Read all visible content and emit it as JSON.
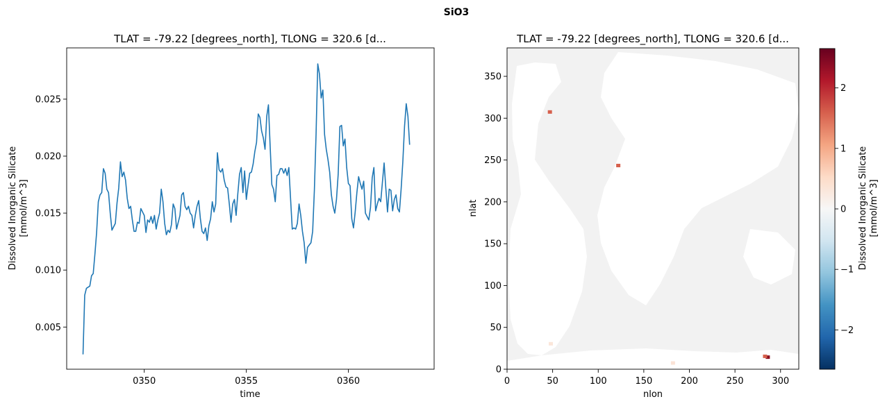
{
  "figure_title": "SiO3",
  "chart_data": [
    {
      "type": "line",
      "title": "TLAT = -79.22 [degrees_north], TLONG = 320.6 [d...",
      "xlabel": "time",
      "ylabel": "Dissolved Inorganic Silicate\n[mmol/m^3]",
      "xlim": [
        346.2,
        364.2
      ],
      "ylim": [
        0.0013,
        0.0295
      ],
      "xticks": [
        350,
        355,
        360
      ],
      "xtick_labels": [
        "0350",
        "0355",
        "0360"
      ],
      "yticks": [
        0.005,
        0.01,
        0.015,
        0.02,
        0.025
      ],
      "ytick_labels": [
        "0.005",
        "0.010",
        "0.015",
        "0.020",
        "0.025"
      ],
      "grid": false,
      "color": "#1f77b4",
      "series": [
        {
          "x_start": 347.0,
          "x_step": 0.0833333,
          "values": [
            0.0026,
            0.0078,
            0.0084,
            0.0085,
            0.0086,
            0.0095,
            0.0097,
            0.0114,
            0.0133,
            0.016,
            0.0166,
            0.0168,
            0.0189,
            0.0185,
            0.0171,
            0.0168,
            0.015,
            0.0135,
            0.0138,
            0.0141,
            0.0159,
            0.0172,
            0.0195,
            0.0182,
            0.0186,
            0.0179,
            0.0163,
            0.0154,
            0.0156,
            0.0144,
            0.0134,
            0.0134,
            0.0142,
            0.0141,
            0.0154,
            0.0151,
            0.0148,
            0.0133,
            0.0144,
            0.0142,
            0.0147,
            0.0141,
            0.0148,
            0.0136,
            0.0144,
            0.015,
            0.0171,
            0.016,
            0.0141,
            0.0131,
            0.0135,
            0.0133,
            0.014,
            0.0158,
            0.0154,
            0.0136,
            0.0142,
            0.0148,
            0.0166,
            0.0168,
            0.0156,
            0.0153,
            0.0156,
            0.015,
            0.0148,
            0.0137,
            0.0148,
            0.0156,
            0.0161,
            0.0145,
            0.0134,
            0.0132,
            0.0137,
            0.0126,
            0.0139,
            0.0145,
            0.016,
            0.0151,
            0.0158,
            0.0203,
            0.0188,
            0.0186,
            0.0189,
            0.0179,
            0.0173,
            0.0172,
            0.0158,
            0.0142,
            0.0158,
            0.0162,
            0.0148,
            0.0167,
            0.0184,
            0.019,
            0.0168,
            0.0187,
            0.0162,
            0.0174,
            0.0185,
            0.0186,
            0.0193,
            0.0204,
            0.0212,
            0.0237,
            0.0234,
            0.0222,
            0.0216,
            0.0206,
            0.0235,
            0.0245,
            0.0209,
            0.0175,
            0.0171,
            0.016,
            0.0183,
            0.0184,
            0.0189,
            0.0189,
            0.0185,
            0.0189,
            0.0183,
            0.019,
            0.0163,
            0.0136,
            0.0137,
            0.0136,
            0.0141,
            0.0158,
            0.0148,
            0.0134,
            0.0124,
            0.0106,
            0.012,
            0.0122,
            0.0124,
            0.0134,
            0.017,
            0.0219,
            0.0281,
            0.0272,
            0.0251,
            0.0258,
            0.0219,
            0.0206,
            0.0197,
            0.0186,
            0.0166,
            0.0156,
            0.015,
            0.0162,
            0.0184,
            0.0226,
            0.0227,
            0.0209,
            0.0215,
            0.019,
            0.0176,
            0.0174,
            0.0145,
            0.0137,
            0.0151,
            0.0168,
            0.0182,
            0.0176,
            0.0171,
            0.0178,
            0.015,
            0.0147,
            0.0144,
            0.0155,
            0.0181,
            0.019,
            0.0152,
            0.0158,
            0.0163,
            0.016,
            0.0177,
            0.0194,
            0.0172,
            0.0151,
            0.0171,
            0.017,
            0.0152,
            0.0162,
            0.0166,
            0.0154,
            0.0151,
            0.0171,
            0.0195,
            0.0226,
            0.0246,
            0.0235,
            0.021
          ]
        }
      ]
    },
    {
      "type": "heatmap",
      "title": "TLAT = -79.22 [degrees_north], TLONG = 320.6 [d...",
      "xlabel": "nlon",
      "ylabel": "nlat",
      "xlim": [
        0,
        320
      ],
      "ylim": [
        0,
        384
      ],
      "xticks": [
        0,
        50,
        100,
        150,
        200,
        250,
        300
      ],
      "xtick_labels": [
        "0",
        "50",
        "100",
        "150",
        "200",
        "250",
        "300"
      ],
      "yticks": [
        0,
        50,
        100,
        150,
        200,
        250,
        300,
        350
      ],
      "ytick_labels": [
        "0",
        "50",
        "100",
        "150",
        "200",
        "250",
        "300",
        "350"
      ],
      "colormap": "RdBu_r",
      "colormap_stops": [
        "#053061",
        "#2166ac",
        "#4393c3",
        "#92c5de",
        "#d1e5f0",
        "#f7f7f7",
        "#fddbc7",
        "#f4a582",
        "#d6604d",
        "#b2182b",
        "#67001f"
      ],
      "colorbar": {
        "label": "Dissolved Inorganic Silicate\n[mmol/m^3]",
        "range": [
          -2.65,
          2.65
        ],
        "ticks": [
          -2,
          -1,
          0,
          1,
          2
        ],
        "tick_labels": [
          "−2",
          "−1",
          "0",
          "1",
          "2"
        ]
      },
      "background_value_color": "#f2f2f2",
      "land_color": "#ffffff",
      "highlights": [
        {
          "nlon": 286,
          "nlat": 14,
          "color": "#8b0f20"
        },
        {
          "nlon": 283,
          "nlat": 15,
          "color": "#d6604d"
        },
        {
          "nlon": 182,
          "nlat": 7,
          "color": "#fbe3d6"
        },
        {
          "nlon": 48,
          "nlat": 30,
          "color": "#fbe6da"
        },
        {
          "nlon": 122,
          "nlat": 243,
          "color": "#d6604d"
        },
        {
          "nlon": 47,
          "nlat": 307,
          "color": "#d6604d"
        }
      ]
    }
  ]
}
